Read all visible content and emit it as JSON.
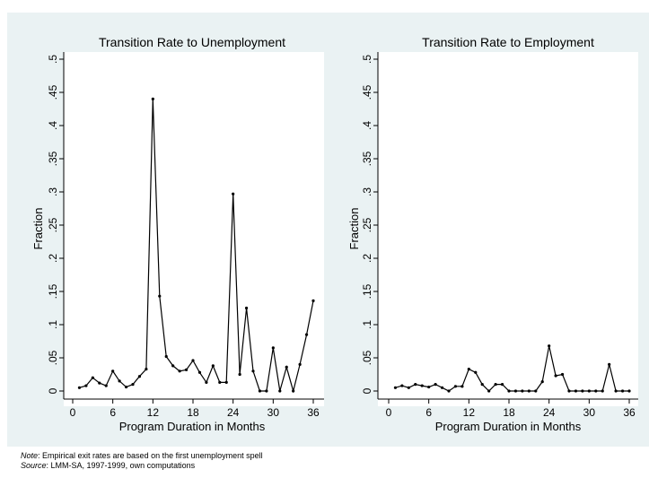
{
  "notes": {
    "note_label": "Note",
    "note_text": ": Empirical exit rates are based on the first unemployment spell",
    "source_label": "Source",
    "source_text": ": LMM-SA, 1997-1999, own computations"
  },
  "chart_data": [
    {
      "type": "line",
      "title": "Transition Rate to Unemployment",
      "xlabel": "Program Duration in Months",
      "ylabel": "Fraction",
      "xlim": [
        0,
        36
      ],
      "ylim": [
        0,
        0.5
      ],
      "xticks": [
        0,
        6,
        12,
        18,
        24,
        30,
        36
      ],
      "xtick_labels": [
        "0",
        "6",
        "12",
        "18",
        "24",
        "30",
        "36"
      ],
      "yticks": [
        0,
        0.05,
        0.1,
        0.15,
        0.2,
        0.25,
        0.3,
        0.35,
        0.4,
        0.45,
        0.5
      ],
      "ytick_labels": [
        "0",
        ".05",
        ".1",
        ".15",
        ".2",
        ".25",
        ".3",
        ".35",
        ".4",
        ".45",
        ".5"
      ],
      "grid": false,
      "series": [
        {
          "x": [
            1,
            2,
            3,
            4,
            5,
            6,
            7,
            8,
            9,
            10,
            11,
            12,
            13,
            14,
            15,
            16,
            17,
            18,
            19,
            20,
            21,
            22,
            23,
            24,
            25,
            26,
            27,
            28,
            29,
            30,
            31,
            32,
            33,
            34,
            35,
            36
          ],
          "y": [
            0.005,
            0.008,
            0.02,
            0.012,
            0.008,
            0.03,
            0.015,
            0.006,
            0.01,
            0.022,
            0.033,
            0.44,
            0.143,
            0.052,
            0.038,
            0.03,
            0.032,
            0.046,
            0.028,
            0.013,
            0.038,
            0.013,
            0.013,
            0.297,
            0.025,
            0.125,
            0.03,
            0.0,
            0.0,
            0.065,
            0.0,
            0.036,
            0.0,
            0.04,
            0.085,
            0.136
          ]
        }
      ]
    },
    {
      "type": "line",
      "title": "Transition Rate to Employment",
      "xlabel": "Program Duration in Months",
      "ylabel": "Fraction",
      "xlim": [
        0,
        36
      ],
      "ylim": [
        0,
        0.5
      ],
      "xticks": [
        0,
        6,
        12,
        18,
        24,
        30,
        36
      ],
      "xtick_labels": [
        "0",
        "6",
        "12",
        "18",
        "24",
        "30",
        "36"
      ],
      "yticks": [
        0,
        0.05,
        0.1,
        0.15,
        0.2,
        0.25,
        0.3,
        0.35,
        0.4,
        0.45,
        0.5
      ],
      "ytick_labels": [
        "0",
        ".05",
        ".1",
        ".15",
        ".2",
        ".25",
        ".3",
        ".35",
        ".4",
        ".45",
        ".5"
      ],
      "grid": false,
      "series": [
        {
          "x": [
            1,
            2,
            3,
            4,
            5,
            6,
            7,
            8,
            9,
            10,
            11,
            12,
            13,
            14,
            15,
            16,
            17,
            18,
            19,
            20,
            21,
            22,
            23,
            24,
            25,
            26,
            27,
            28,
            29,
            30,
            31,
            32,
            33,
            34,
            35,
            36
          ],
          "y": [
            0.005,
            0.008,
            0.005,
            0.01,
            0.008,
            0.006,
            0.01,
            0.005,
            0.0,
            0.007,
            0.007,
            0.033,
            0.028,
            0.01,
            0.0,
            0.01,
            0.01,
            0.0,
            0.0,
            0.0,
            0.0,
            0.0,
            0.014,
            0.068,
            0.023,
            0.025,
            0.0,
            0.0,
            0.0,
            0.0,
            0.0,
            0.0,
            0.04,
            0.0,
            0.0,
            0.0
          ]
        }
      ]
    }
  ]
}
